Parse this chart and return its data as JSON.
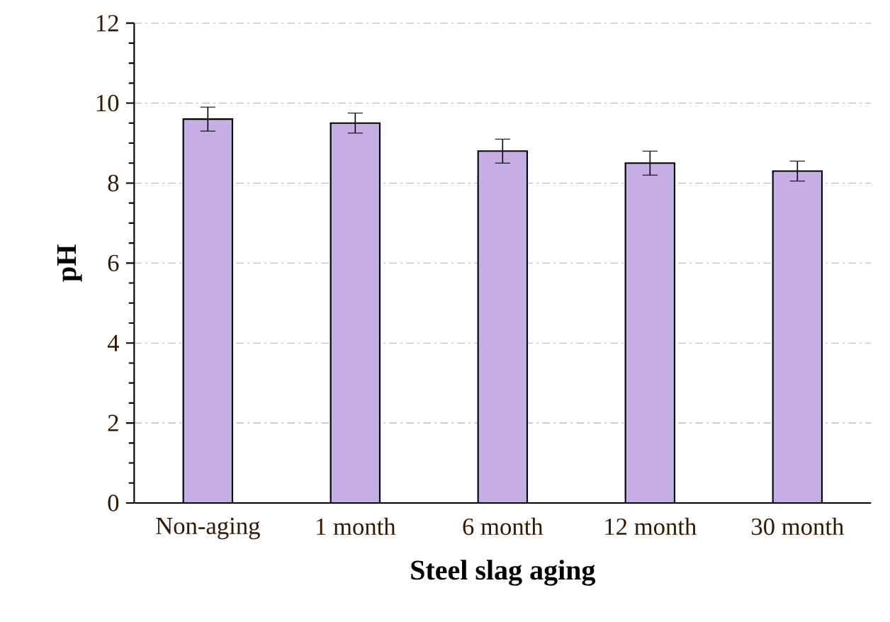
{
  "chart_data": {
    "type": "bar",
    "xlabel": "Steel slag aging",
    "ylabel": "pH",
    "categories": [
      "Non-aging",
      "1 month",
      "6 month",
      "12 month",
      "30 month"
    ],
    "values": [
      9.6,
      9.5,
      8.8,
      8.5,
      8.3
    ],
    "errors": [
      0.3,
      0.25,
      0.3,
      0.3,
      0.25
    ],
    "color": "#c4aee3",
    "ylim": [
      0,
      12
    ],
    "yticks": [
      0,
      2,
      4,
      6,
      8,
      10,
      12
    ],
    "grid": "y"
  }
}
